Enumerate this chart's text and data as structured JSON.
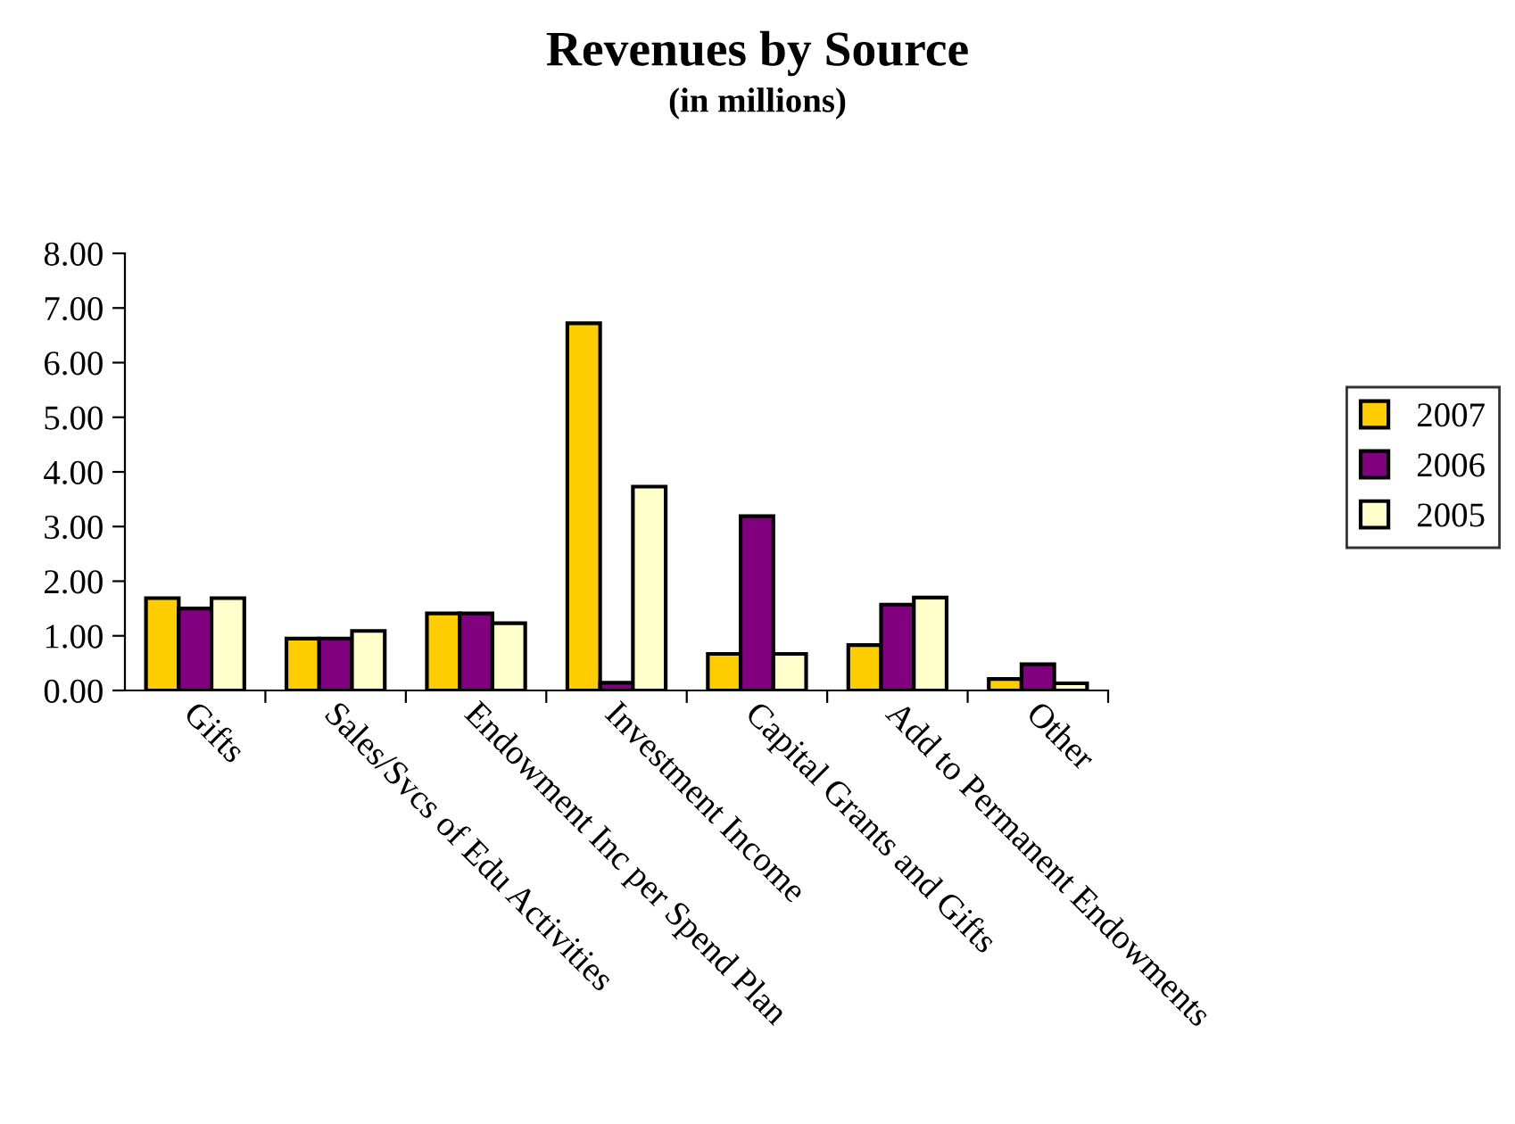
{
  "chart_data": {
    "type": "bar",
    "title": "Revenues by Source",
    "subtitle": "(in millions)",
    "categories": [
      "Gifts",
      "Sales/Svcs of Edu Activities",
      "Endowment Inc per Spend Plan",
      "Investment Income",
      "Capital Grants and Gifts",
      "Add to Permanent Endowments",
      "Other"
    ],
    "series": [
      {
        "name": "2007",
        "color": "#ffcc00",
        "values": [
          1.69,
          0.95,
          1.41,
          6.72,
          0.67,
          0.83,
          0.21
        ]
      },
      {
        "name": "2006",
        "color": "#800080",
        "values": [
          1.5,
          0.95,
          1.41,
          0.14,
          3.19,
          1.57,
          0.48
        ]
      },
      {
        "name": "2005",
        "color": "#ffffcc",
        "values": [
          1.69,
          1.09,
          1.23,
          3.73,
          0.67,
          1.7,
          0.13
        ]
      }
    ],
    "ylim": [
      0,
      8
    ],
    "yticks": [
      {
        "value": 0,
        "label": "0.00"
      },
      {
        "value": 1,
        "label": "1.00"
      },
      {
        "value": 2,
        "label": "2.00"
      },
      {
        "value": 3,
        "label": "3.00"
      },
      {
        "value": 4,
        "label": "4.00"
      },
      {
        "value": 5,
        "label": "5.00"
      },
      {
        "value": 6,
        "label": "6.00"
      },
      {
        "value": 7,
        "label": "7.00"
      },
      {
        "value": 8,
        "label": "8.00"
      }
    ],
    "grid": false,
    "legend": "right"
  }
}
